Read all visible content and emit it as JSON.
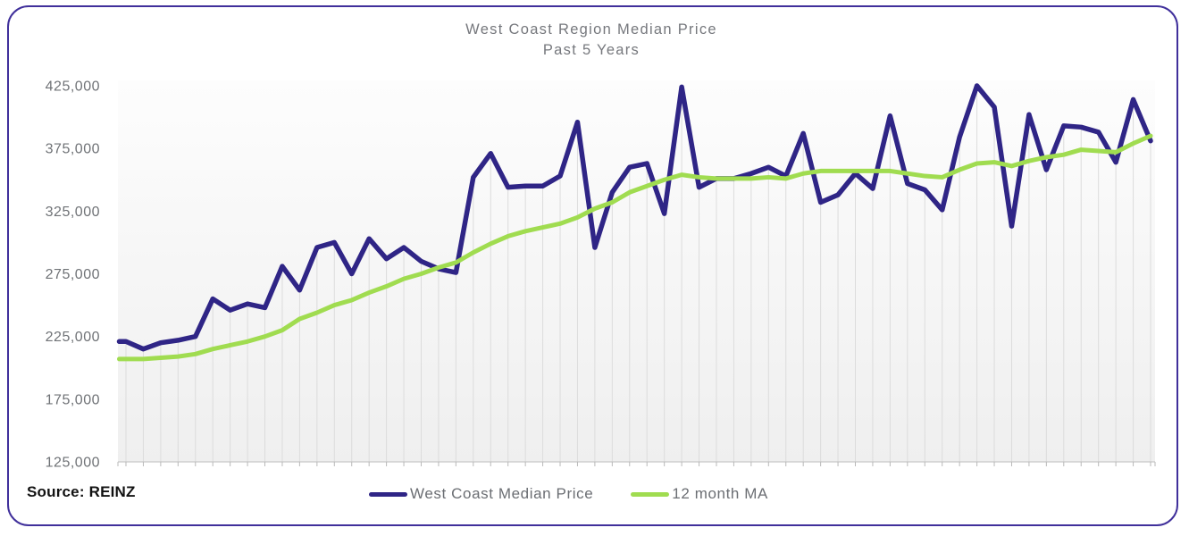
{
  "card": {
    "border_color": "#40309b"
  },
  "title": {
    "line1": "West Coast Region Median Price",
    "line2": "Past 5 Years",
    "color": "#76787d"
  },
  "source_label": "Source: REINZ",
  "legend": {
    "text_color": "#6b6e73",
    "items": [
      {
        "label": "West Coast Median Price",
        "color": "#2f2586"
      },
      {
        "label": "12 month MA",
        "color": "#a0dc50"
      }
    ]
  },
  "y_axis": {
    "tick_labels": [
      "425,000",
      "375,000",
      "325,000",
      "275,000",
      "225,000",
      "175,000",
      "125,000"
    ],
    "label_color": "#6f7276"
  },
  "chart_data": {
    "type": "line",
    "title": "West Coast Region Median Price",
    "subtitle": "Past 5 Years",
    "x_unit": "month",
    "n_points": 60,
    "x_tick_labels": [],
    "ylim": [
      125000,
      425000
    ],
    "y_ticks": [
      425000,
      375000,
      325000,
      275000,
      225000,
      175000,
      125000
    ],
    "grid": "vertical droplines from each median-price point to the x-axis",
    "legend_position": "bottom-center",
    "series": [
      {
        "name": "West Coast Median Price",
        "color": "#2f2586",
        "stroke_width": 5.5,
        "values": [
          221000,
          215000,
          220000,
          222000,
          225000,
          255000,
          246000,
          251000,
          248000,
          281000,
          262000,
          296000,
          300000,
          275000,
          303000,
          287000,
          296000,
          285000,
          279000,
          276000,
          352000,
          371000,
          344000,
          345000,
          345000,
          353000,
          396000,
          296000,
          340000,
          360000,
          363000,
          323000,
          424000,
          344000,
          351000,
          351000,
          355000,
          360000,
          353000,
          387000,
          332000,
          338000,
          355000,
          343000,
          401000,
          347000,
          342000,
          326000,
          384000,
          425000,
          408000,
          313000,
          402000,
          358000,
          393000,
          392000,
          388000,
          364000,
          414000,
          381000
        ]
      },
      {
        "name": "12 month MA",
        "color": "#a0dc50",
        "stroke_width": 5,
        "values": [
          207000,
          207000,
          208000,
          209000,
          211000,
          215000,
          218000,
          221000,
          225000,
          230000,
          239000,
          244000,
          250000,
          254000,
          260000,
          265000,
          271000,
          275000,
          280000,
          284000,
          292000,
          299000,
          305000,
          309000,
          312000,
          315000,
          320000,
          327000,
          332000,
          340000,
          345000,
          350000,
          354000,
          352000,
          351000,
          351000,
          351000,
          352000,
          351000,
          355000,
          357000,
          357000,
          357000,
          357000,
          357000,
          355000,
          353000,
          352000,
          358000,
          363000,
          364000,
          361000,
          365000,
          368000,
          370000,
          374000,
          373000,
          372000,
          379000,
          385000
        ]
      }
    ]
  }
}
